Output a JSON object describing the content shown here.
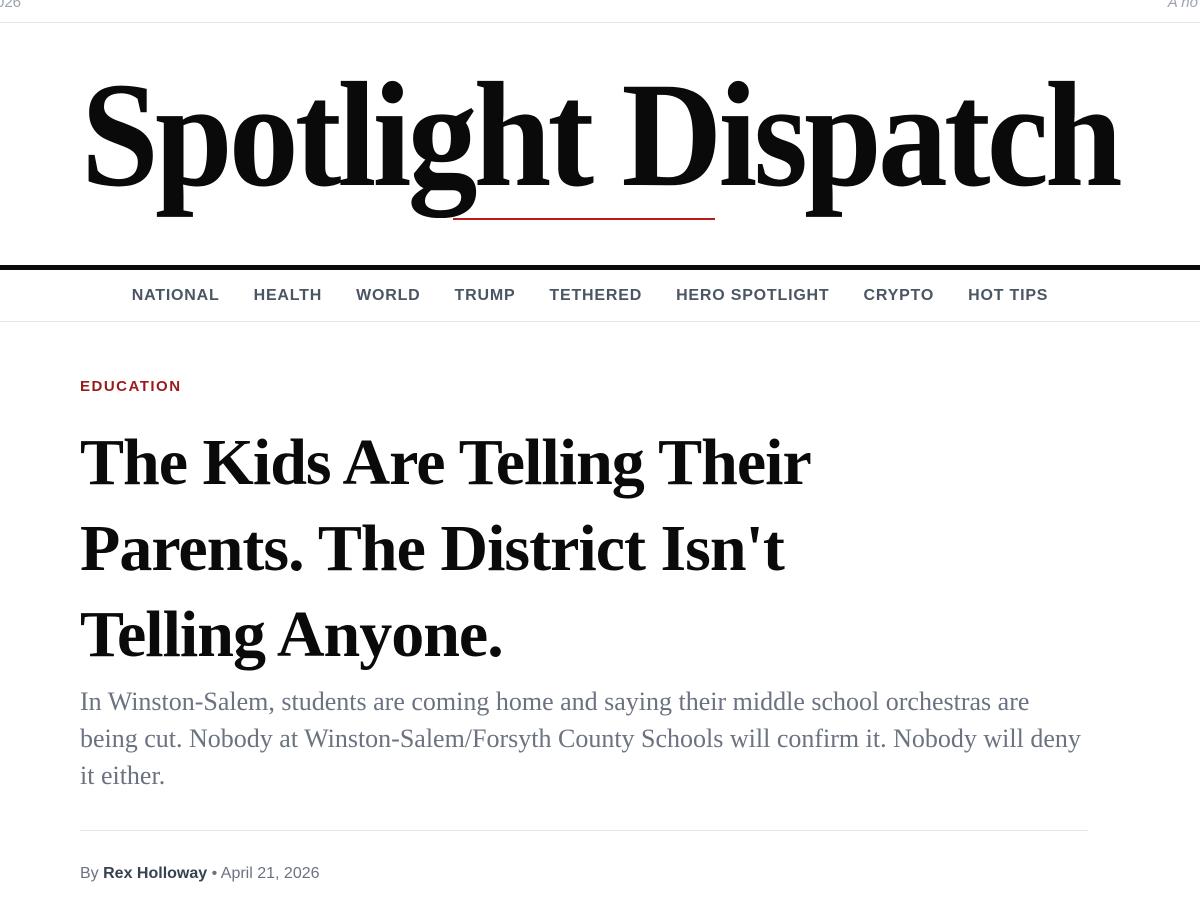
{
  "top_bar": {
    "left_text": "026",
    "right_text": "A no"
  },
  "masthead": {
    "title": "Spotlight Dispatch"
  },
  "nav": {
    "items": [
      "NATIONAL",
      "HEALTH",
      "WORLD",
      "TRUMP",
      "TETHERED",
      "HERO SPOTLIGHT",
      "CRYPTO",
      "HOT TIPS"
    ]
  },
  "article": {
    "category": "EDUCATION",
    "headline": "The Kids Are Telling Their Parents. The District Isn't Telling Anyone.",
    "dek": "In Winston-Salem, students are coming home and saying their middle school orchestras are being cut. Nobody at Winston-Salem/Forsyth County Schools will confirm it. Nobody will deny it either.",
    "byline_prefix": "By",
    "author": "Rex Holloway",
    "separator": "•",
    "date": "April 21, 2026"
  },
  "colors": {
    "accent": "#991b1b",
    "text": "#0a0a0a",
    "muted": "#6b7280"
  }
}
